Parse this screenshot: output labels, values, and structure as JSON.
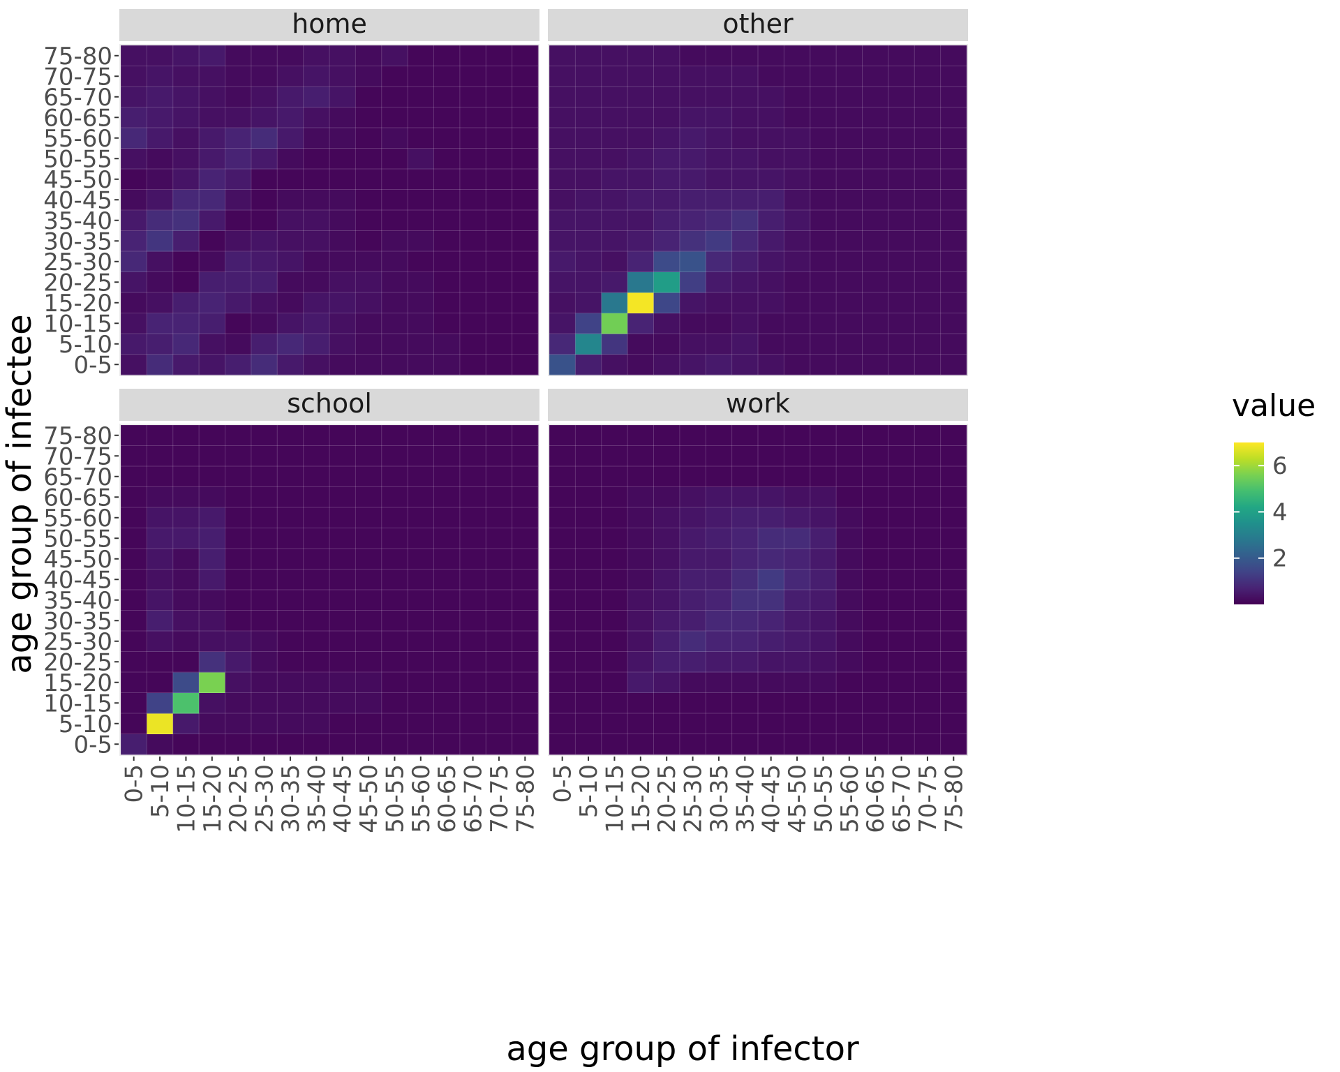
{
  "chart_data": {
    "type": "heatmap",
    "x_label": "age group of infector",
    "y_label": "age group of infectee",
    "categories": [
      "0-5",
      "5-10",
      "10-15",
      "15-20",
      "20-25",
      "25-30",
      "30-35",
      "35-40",
      "40-45",
      "45-50",
      "50-55",
      "55-60",
      "60-65",
      "65-70",
      "70-75",
      "75-80"
    ],
    "legend": {
      "title": "value",
      "ticks": [
        2,
        4,
        6
      ],
      "range": [
        0,
        7
      ],
      "colormap": "viridis",
      "placement": "right"
    },
    "panels": [
      {
        "name": "home",
        "rows": [
          [
            0.3,
            0.9,
            0.5,
            0.4,
            0.6,
            0.9,
            0.5,
            0.3,
            0.2,
            0.2,
            0.2,
            0.2,
            0.2,
            0.1,
            0.1,
            0.1
          ],
          [
            0.5,
            0.6,
            0.8,
            0.3,
            0.2,
            0.6,
            0.8,
            0.6,
            0.3,
            0.2,
            0.2,
            0.2,
            0.2,
            0.1,
            0.1,
            0.1
          ],
          [
            0.3,
            0.7,
            0.7,
            0.6,
            0.1,
            0.2,
            0.4,
            0.5,
            0.3,
            0.2,
            0.2,
            0.2,
            0.1,
            0.1,
            0.1,
            0.1
          ],
          [
            0.2,
            0.3,
            0.6,
            0.7,
            0.5,
            0.3,
            0.2,
            0.4,
            0.4,
            0.3,
            0.2,
            0.2,
            0.1,
            0.1,
            0.1,
            0.1
          ],
          [
            0.4,
            0.2,
            0.1,
            0.6,
            0.6,
            0.6,
            0.2,
            0.2,
            0.3,
            0.3,
            0.2,
            0.2,
            0.1,
            0.1,
            0.1,
            0.1
          ],
          [
            0.8,
            0.3,
            0.1,
            0.2,
            0.6,
            0.5,
            0.4,
            0.2,
            0.2,
            0.2,
            0.2,
            0.1,
            0.1,
            0.1,
            0.1,
            0.1
          ],
          [
            0.7,
            1.1,
            0.6,
            0.1,
            0.3,
            0.4,
            0.3,
            0.3,
            0.2,
            0.1,
            0.2,
            0.2,
            0.1,
            0.1,
            0.1,
            0.1
          ],
          [
            0.5,
            0.9,
            1.0,
            0.5,
            0.1,
            0.1,
            0.3,
            0.3,
            0.2,
            0.1,
            0.1,
            0.1,
            0.1,
            0.1,
            0.1,
            0.1
          ],
          [
            0.2,
            0.4,
            0.8,
            0.8,
            0.3,
            0.1,
            0.2,
            0.2,
            0.2,
            0.1,
            0.1,
            0.1,
            0.1,
            0.1,
            0.1,
            0.1
          ],
          [
            0.1,
            0.2,
            0.4,
            0.7,
            0.5,
            0.1,
            0.1,
            0.1,
            0.1,
            0.1,
            0.1,
            0.1,
            0.1,
            0.1,
            0.1,
            0.1
          ],
          [
            0.3,
            0.2,
            0.3,
            0.5,
            0.7,
            0.5,
            0.2,
            0.1,
            0.1,
            0.1,
            0.1,
            0.3,
            0.1,
            0.1,
            0.1,
            0.1
          ],
          [
            0.8,
            0.5,
            0.3,
            0.5,
            0.7,
            0.9,
            0.5,
            0.2,
            0.2,
            0.1,
            0.2,
            0.1,
            0.1,
            0.1,
            0.1,
            0.1
          ],
          [
            0.6,
            0.5,
            0.4,
            0.3,
            0.3,
            0.4,
            0.5,
            0.3,
            0.2,
            0.1,
            0.1,
            0.1,
            0.1,
            0.1,
            0.1,
            0.1
          ],
          [
            0.4,
            0.5,
            0.4,
            0.3,
            0.2,
            0.3,
            0.5,
            0.6,
            0.4,
            0.1,
            0.1,
            0.1,
            0.1,
            0.1,
            0.1,
            0.1
          ],
          [
            0.3,
            0.4,
            0.3,
            0.3,
            0.2,
            0.2,
            0.3,
            0.4,
            0.3,
            0.2,
            0.1,
            0.1,
            0.1,
            0.1,
            0.1,
            0.1
          ],
          [
            0.3,
            0.3,
            0.4,
            0.5,
            0.2,
            0.2,
            0.2,
            0.3,
            0.3,
            0.2,
            0.3,
            0.1,
            0.1,
            0.1,
            0.1,
            0.1
          ]
        ]
      },
      {
        "name": "other",
        "rows": [
          [
            1.8,
            0.6,
            0.3,
            0.2,
            0.3,
            0.4,
            0.5,
            0.4,
            0.3,
            0.2,
            0.2,
            0.2,
            0.2,
            0.2,
            0.2,
            0.2
          ],
          [
            0.8,
            3.2,
            1.1,
            0.2,
            0.2,
            0.3,
            0.3,
            0.4,
            0.2,
            0.2,
            0.2,
            0.2,
            0.2,
            0.2,
            0.2,
            0.2
          ],
          [
            0.4,
            1.4,
            5.5,
            0.7,
            0.3,
            0.2,
            0.2,
            0.3,
            0.2,
            0.2,
            0.2,
            0.2,
            0.2,
            0.2,
            0.2,
            0.2
          ],
          [
            0.3,
            0.4,
            2.8,
            6.9,
            1.5,
            0.4,
            0.3,
            0.3,
            0.3,
            0.2,
            0.2,
            0.2,
            0.2,
            0.2,
            0.2,
            0.2
          ],
          [
            0.4,
            0.4,
            0.5,
            2.8,
            3.9,
            1.3,
            0.5,
            0.4,
            0.3,
            0.2,
            0.2,
            0.2,
            0.2,
            0.2,
            0.2,
            0.2
          ],
          [
            0.5,
            0.4,
            0.3,
            0.7,
            1.6,
            1.8,
            0.8,
            0.6,
            0.4,
            0.3,
            0.2,
            0.2,
            0.2,
            0.2,
            0.2,
            0.2
          ],
          [
            0.4,
            0.4,
            0.4,
            0.5,
            0.7,
            1.0,
            1.2,
            0.8,
            0.5,
            0.3,
            0.2,
            0.2,
            0.2,
            0.2,
            0.2,
            0.2
          ],
          [
            0.4,
            0.4,
            0.4,
            0.4,
            0.6,
            0.7,
            0.8,
            1.0,
            0.6,
            0.4,
            0.2,
            0.2,
            0.2,
            0.2,
            0.2,
            0.2
          ],
          [
            0.3,
            0.4,
            0.4,
            0.5,
            0.5,
            0.6,
            0.6,
            0.6,
            0.6,
            0.3,
            0.2,
            0.2,
            0.2,
            0.2,
            0.2,
            0.2
          ],
          [
            0.3,
            0.3,
            0.4,
            0.4,
            0.5,
            0.5,
            0.4,
            0.4,
            0.4,
            0.3,
            0.2,
            0.2,
            0.2,
            0.2,
            0.2,
            0.2
          ],
          [
            0.3,
            0.3,
            0.3,
            0.4,
            0.5,
            0.5,
            0.4,
            0.4,
            0.3,
            0.3,
            0.2,
            0.2,
            0.2,
            0.2,
            0.2,
            0.2
          ],
          [
            0.3,
            0.3,
            0.3,
            0.3,
            0.4,
            0.5,
            0.4,
            0.3,
            0.3,
            0.3,
            0.2,
            0.2,
            0.2,
            0.2,
            0.2,
            0.2
          ],
          [
            0.3,
            0.3,
            0.3,
            0.3,
            0.3,
            0.4,
            0.4,
            0.3,
            0.3,
            0.2,
            0.2,
            0.2,
            0.2,
            0.2,
            0.2,
            0.2
          ],
          [
            0.3,
            0.3,
            0.3,
            0.3,
            0.3,
            0.3,
            0.3,
            0.3,
            0.3,
            0.2,
            0.2,
            0.2,
            0.2,
            0.2,
            0.2,
            0.2
          ],
          [
            0.3,
            0.3,
            0.3,
            0.3,
            0.3,
            0.3,
            0.3,
            0.3,
            0.2,
            0.2,
            0.2,
            0.2,
            0.2,
            0.2,
            0.2,
            0.2
          ],
          [
            0.3,
            0.3,
            0.3,
            0.3,
            0.3,
            0.2,
            0.2,
            0.2,
            0.2,
            0.2,
            0.2,
            0.2,
            0.2,
            0.2,
            0.2,
            0.2
          ]
        ]
      },
      {
        "name": "school",
        "rows": [
          [
            0.6,
            0.2,
            0.1,
            0.1,
            0.1,
            0.1,
            0.1,
            0.1,
            0.1,
            0.1,
            0.1,
            0.1,
            0.1,
            0.1,
            0.1,
            0.1
          ],
          [
            0.1,
            6.8,
            0.5,
            0.2,
            0.2,
            0.2,
            0.2,
            0.2,
            0.1,
            0.1,
            0.1,
            0.1,
            0.1,
            0.1,
            0.1,
            0.1
          ],
          [
            0.1,
            1.4,
            5.0,
            0.3,
            0.2,
            0.2,
            0.2,
            0.2,
            0.2,
            0.2,
            0.1,
            0.1,
            0.1,
            0.1,
            0.1,
            0.1
          ],
          [
            0.1,
            0.1,
            1.6,
            5.6,
            0.3,
            0.2,
            0.2,
            0.2,
            0.2,
            0.2,
            0.1,
            0.1,
            0.1,
            0.1,
            0.1,
            0.1
          ],
          [
            0.1,
            0.1,
            0.1,
            1.0,
            0.5,
            0.2,
            0.1,
            0.1,
            0.1,
            0.1,
            0.1,
            0.1,
            0.1,
            0.1,
            0.1,
            0.1
          ],
          [
            0.1,
            0.3,
            0.2,
            0.3,
            0.3,
            0.2,
            0.1,
            0.1,
            0.1,
            0.1,
            0.1,
            0.1,
            0.1,
            0.1,
            0.1,
            0.1
          ],
          [
            0.1,
            0.6,
            0.3,
            0.3,
            0.1,
            0.1,
            0.1,
            0.1,
            0.1,
            0.1,
            0.1,
            0.1,
            0.1,
            0.1,
            0.1,
            0.1
          ],
          [
            0.1,
            0.4,
            0.2,
            0.2,
            0.1,
            0.1,
            0.1,
            0.1,
            0.1,
            0.1,
            0.1,
            0.1,
            0.1,
            0.1,
            0.1,
            0.1
          ],
          [
            0.1,
            0.3,
            0.2,
            0.5,
            0.1,
            0.1,
            0.1,
            0.1,
            0.1,
            0.1,
            0.1,
            0.1,
            0.1,
            0.1,
            0.1,
            0.1
          ],
          [
            0.1,
            0.4,
            0.2,
            0.6,
            0.1,
            0.1,
            0.1,
            0.1,
            0.1,
            0.1,
            0.1,
            0.1,
            0.1,
            0.1,
            0.1,
            0.1
          ],
          [
            0.1,
            0.5,
            0.5,
            0.6,
            0.1,
            0.1,
            0.1,
            0.1,
            0.1,
            0.1,
            0.1,
            0.1,
            0.1,
            0.1,
            0.1,
            0.1
          ],
          [
            0.1,
            0.4,
            0.4,
            0.5,
            0.1,
            0.1,
            0.1,
            0.1,
            0.1,
            0.1,
            0.1,
            0.1,
            0.1,
            0.1,
            0.1,
            0.1
          ],
          [
            0.1,
            0.2,
            0.2,
            0.2,
            0.1,
            0.1,
            0.1,
            0.1,
            0.1,
            0.1,
            0.1,
            0.1,
            0.1,
            0.1,
            0.1,
            0.1
          ],
          [
            0.1,
            0.1,
            0.1,
            0.1,
            0.1,
            0.1,
            0.1,
            0.1,
            0.1,
            0.1,
            0.1,
            0.1,
            0.1,
            0.1,
            0.1,
            0.1
          ],
          [
            0.1,
            0.1,
            0.1,
            0.1,
            0.1,
            0.1,
            0.1,
            0.1,
            0.1,
            0.1,
            0.1,
            0.1,
            0.1,
            0.1,
            0.1,
            0.1
          ],
          [
            0.1,
            0.1,
            0.1,
            0.1,
            0.1,
            0.1,
            0.1,
            0.1,
            0.1,
            0.1,
            0.1,
            0.1,
            0.1,
            0.1,
            0.1,
            0.1
          ]
        ]
      },
      {
        "name": "work",
        "rows": [
          [
            0.1,
            0.1,
            0.1,
            0.1,
            0.1,
            0.1,
            0.1,
            0.1,
            0.1,
            0.1,
            0.1,
            0.1,
            0.1,
            0.1,
            0.1,
            0.1
          ],
          [
            0.1,
            0.1,
            0.1,
            0.1,
            0.1,
            0.1,
            0.1,
            0.1,
            0.1,
            0.1,
            0.1,
            0.1,
            0.1,
            0.1,
            0.1,
            0.1
          ],
          [
            0.1,
            0.1,
            0.1,
            0.1,
            0.1,
            0.1,
            0.1,
            0.1,
            0.1,
            0.1,
            0.1,
            0.1,
            0.1,
            0.1,
            0.1,
            0.1
          ],
          [
            0.1,
            0.1,
            0.1,
            0.5,
            0.4,
            0.2,
            0.2,
            0.2,
            0.2,
            0.2,
            0.2,
            0.1,
            0.1,
            0.1,
            0.1,
            0.1
          ],
          [
            0.1,
            0.1,
            0.1,
            0.4,
            0.6,
            0.6,
            0.5,
            0.5,
            0.4,
            0.4,
            0.3,
            0.2,
            0.1,
            0.1,
            0.1,
            0.1
          ],
          [
            0.1,
            0.1,
            0.1,
            0.3,
            0.6,
            0.9,
            0.7,
            0.7,
            0.6,
            0.5,
            0.4,
            0.2,
            0.1,
            0.1,
            0.1,
            0.1
          ],
          [
            0.1,
            0.1,
            0.1,
            0.3,
            0.5,
            0.6,
            0.8,
            0.8,
            0.7,
            0.5,
            0.4,
            0.2,
            0.1,
            0.1,
            0.1,
            0.1
          ],
          [
            0.1,
            0.1,
            0.1,
            0.3,
            0.4,
            0.6,
            0.7,
            1.0,
            1.0,
            0.6,
            0.5,
            0.2,
            0.1,
            0.1,
            0.1,
            0.1
          ],
          [
            0.1,
            0.1,
            0.1,
            0.2,
            0.4,
            0.6,
            0.6,
            0.9,
            1.2,
            0.8,
            0.6,
            0.2,
            0.1,
            0.1,
            0.1,
            0.1
          ],
          [
            0.1,
            0.1,
            0.1,
            0.2,
            0.3,
            0.5,
            0.5,
            0.7,
            0.8,
            0.7,
            0.5,
            0.2,
            0.1,
            0.1,
            0.1,
            0.1
          ],
          [
            0.1,
            0.1,
            0.1,
            0.2,
            0.3,
            0.5,
            0.6,
            0.7,
            0.9,
            0.9,
            0.6,
            0.2,
            0.1,
            0.1,
            0.1,
            0.1
          ],
          [
            0.1,
            0.1,
            0.1,
            0.2,
            0.3,
            0.4,
            0.5,
            0.6,
            0.6,
            0.5,
            0.4,
            0.2,
            0.1,
            0.1,
            0.1,
            0.1
          ],
          [
            0.1,
            0.1,
            0.1,
            0.2,
            0.2,
            0.3,
            0.4,
            0.4,
            0.4,
            0.3,
            0.3,
            0.1,
            0.1,
            0.1,
            0.1,
            0.1
          ],
          [
            0.1,
            0.1,
            0.1,
            0.1,
            0.1,
            0.1,
            0.1,
            0.1,
            0.1,
            0.1,
            0.1,
            0.1,
            0.1,
            0.1,
            0.1,
            0.1
          ],
          [
            0.1,
            0.1,
            0.1,
            0.1,
            0.1,
            0.1,
            0.1,
            0.1,
            0.1,
            0.1,
            0.1,
            0.1,
            0.1,
            0.1,
            0.1,
            0.1
          ],
          [
            0.1,
            0.1,
            0.1,
            0.1,
            0.1,
            0.1,
            0.1,
            0.1,
            0.1,
            0.1,
            0.1,
            0.1,
            0.1,
            0.1,
            0.1,
            0.1
          ]
        ]
      }
    ]
  }
}
